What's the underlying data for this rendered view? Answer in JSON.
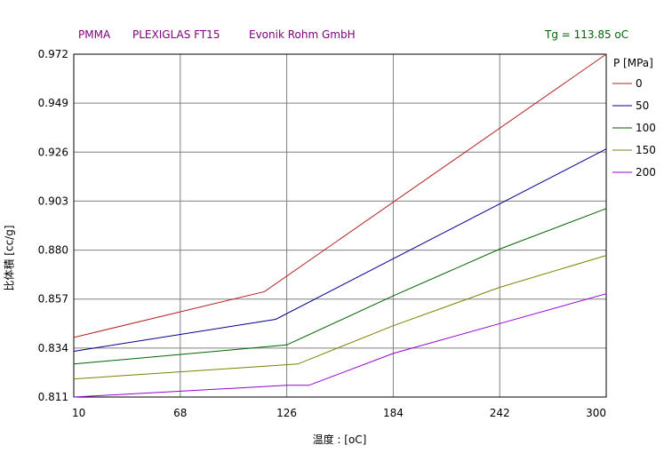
{
  "header": {
    "material": "PMMA",
    "grade": "PLEXIGLAS FT15",
    "maker": "Evonik Rohm GmbH",
    "tg": "Tg = 113.85 oC"
  },
  "colors": {
    "header_text": "#800080",
    "tg_text": "#006400",
    "grid": "#808080",
    "axis": "#000000"
  },
  "chart_data": {
    "type": "line",
    "xlabel": "温度 : [oC]",
    "ylabel": "比体積 [cc/g]",
    "xlim": [
      10,
      300
    ],
    "ylim": [
      0.811,
      0.972
    ],
    "xticks": [
      "10",
      "68",
      "126",
      "184",
      "242",
      "300"
    ],
    "yticks": [
      "0.811",
      "0.834",
      "0.857",
      "0.880",
      "0.903",
      "0.926",
      "0.949",
      "0.972"
    ],
    "grid": true,
    "legend_title": "P [MPa]",
    "legend_position": "right",
    "series": [
      {
        "name": "0",
        "color": "#b22222",
        "x": [
          10,
          113.85,
          300
        ],
        "y": [
          0.839,
          0.8605,
          0.972
        ]
      },
      {
        "name": "50",
        "color": "#00008b",
        "x": [
          10,
          120,
          300
        ],
        "y": [
          0.8325,
          0.8475,
          0.9275
        ]
      },
      {
        "name": "100",
        "color": "#006400",
        "x": [
          10,
          126,
          184,
          242,
          300
        ],
        "y": [
          0.8265,
          0.8355,
          0.8585,
          0.8805,
          0.8995
        ]
      },
      {
        "name": "150",
        "color": "#808000",
        "x": [
          10,
          132,
          184,
          242,
          300
        ],
        "y": [
          0.8195,
          0.8265,
          0.8445,
          0.8625,
          0.8775
        ]
      },
      {
        "name": "200",
        "color": "#9400d3",
        "x": [
          10,
          126,
          138,
          184,
          242,
          300
        ],
        "y": [
          0.811,
          0.8165,
          0.8165,
          0.8315,
          0.8455,
          0.8595
        ]
      }
    ]
  }
}
